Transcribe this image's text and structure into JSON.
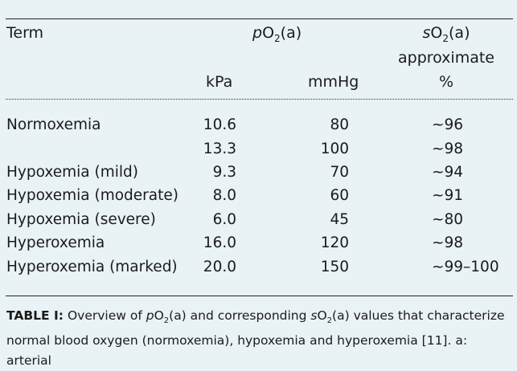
{
  "table": {
    "header": {
      "term": "Term",
      "po2_prefix": "p",
      "po2_main": "O",
      "po2_sub": "2",
      "po2_suffix": "(a)",
      "so2_prefix": "s",
      "so2_main": "O",
      "so2_sub": "2",
      "so2_suffix": "(a)",
      "so2_line2": "approximate",
      "kpa": "kPa",
      "mmhg": "mmHg",
      "percent": "%"
    },
    "rows": [
      {
        "term": "Normoxemia",
        "kpa": "10.6",
        "mmhg": "80",
        "so2": "~96"
      },
      {
        "term": "",
        "kpa": "13.3",
        "mmhg": "100",
        "so2": "~98"
      },
      {
        "term": "Hypoxemia (mild)",
        "kpa": "9.3",
        "mmhg": "70",
        "so2": "~94"
      },
      {
        "term": "Hypoxemia (moderate)",
        "kpa": "8.0",
        "mmhg": "60",
        "so2": "~91"
      },
      {
        "term": "Hypoxemia (severe)",
        "kpa": "6.0",
        "mmhg": "45",
        "so2": "~80"
      },
      {
        "term": "Hyperoxemia",
        "kpa": "16.0",
        "mmhg": "120",
        "so2": "~98"
      },
      {
        "term": "Hyperoxemia (marked)",
        "kpa": "20.0",
        "mmhg": "150",
        "so2": "~99–100"
      }
    ]
  },
  "caption": {
    "label": "TABLE I:",
    "t1": " Overview of ",
    "p_italic": "p",
    "o": "O",
    "sub": "2",
    "a": "(a) and corresponding ",
    "s_italic": "s",
    "o2": "O",
    "sub2": "2",
    "rest_line1": "(a) values that characterize",
    "line2": "normal blood oxygen (normoxemia), hypoxemia and hyperoxemia [11]. a: arterial"
  },
  "colors": {
    "background": "#e9f2f5",
    "text": "#1b1b1b",
    "rule": "#222222"
  }
}
